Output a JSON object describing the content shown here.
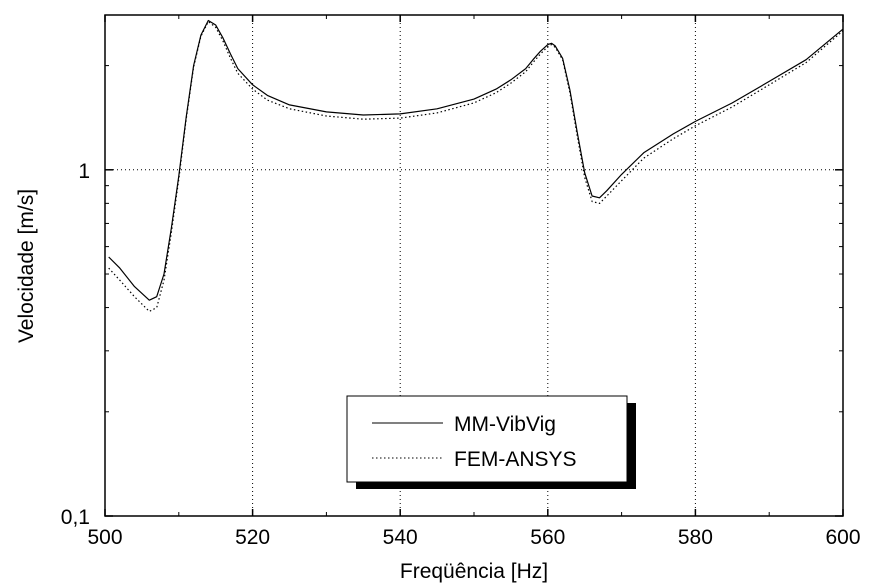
{
  "chart_data": {
    "type": "line",
    "xlabel": "Freqüência [Hz]",
    "ylabel": "Velocidade [m/s]",
    "xlim": [
      500,
      600
    ],
    "ylim": [
      0.1,
      2.8
    ],
    "yscale": "log",
    "grid": true,
    "legend_position": "bottom-center",
    "x_tick_labels": [
      "500",
      "520",
      "540",
      "560",
      "580",
      "600"
    ],
    "x_tick_values": [
      500,
      520,
      540,
      560,
      580,
      600
    ],
    "y_tick_labels": [
      "0,1",
      "1"
    ],
    "y_tick_values": [
      0.1,
      1
    ],
    "series": [
      {
        "name": "MM-VibVig",
        "style": "solid",
        "color": "#000000",
        "x": [
          500.5,
          502,
          504,
          506,
          507,
          508,
          509,
          510,
          511,
          512,
          513,
          514,
          515,
          516,
          517,
          518,
          520,
          522,
          525,
          530,
          535,
          540,
          545,
          550,
          553,
          555,
          557,
          558,
          559,
          560,
          560.5,
          561,
          562,
          563,
          564,
          565,
          566,
          567,
          568,
          570,
          573,
          577,
          580,
          585,
          590,
          595,
          600
        ],
        "y": [
          0.56,
          0.52,
          0.46,
          0.42,
          0.43,
          0.5,
          0.68,
          0.96,
          1.42,
          2.0,
          2.45,
          2.7,
          2.62,
          2.4,
          2.16,
          1.96,
          1.76,
          1.64,
          1.54,
          1.47,
          1.44,
          1.45,
          1.5,
          1.6,
          1.71,
          1.82,
          1.96,
          2.08,
          2.2,
          2.3,
          2.32,
          2.28,
          2.1,
          1.7,
          1.28,
          0.98,
          0.84,
          0.83,
          0.87,
          0.97,
          1.12,
          1.27,
          1.38,
          1.56,
          1.8,
          2.08,
          2.55
        ]
      },
      {
        "name": "FEM-ANSYS",
        "style": "dotted",
        "color": "#000000",
        "x": [
          500.5,
          502,
          504,
          506,
          507,
          508,
          509,
          510,
          511,
          512,
          513,
          514,
          515,
          516,
          517,
          518,
          520,
          522,
          525,
          530,
          535,
          540,
          545,
          550,
          553,
          555,
          557,
          558,
          559,
          560,
          560.5,
          561,
          562,
          563,
          564,
          565,
          566,
          567,
          568,
          570,
          573,
          577,
          580,
          585,
          590,
          595,
          600
        ],
        "y": [
          0.52,
          0.48,
          0.43,
          0.39,
          0.4,
          0.48,
          0.66,
          0.94,
          1.4,
          1.98,
          2.43,
          2.68,
          2.58,
          2.35,
          2.1,
          1.9,
          1.71,
          1.59,
          1.5,
          1.43,
          1.4,
          1.41,
          1.46,
          1.56,
          1.67,
          1.78,
          1.92,
          2.04,
          2.16,
          2.27,
          2.3,
          2.26,
          2.08,
          1.67,
          1.25,
          0.95,
          0.81,
          0.8,
          0.84,
          0.93,
          1.08,
          1.23,
          1.34,
          1.52,
          1.76,
          2.04,
          2.52
        ]
      }
    ]
  }
}
